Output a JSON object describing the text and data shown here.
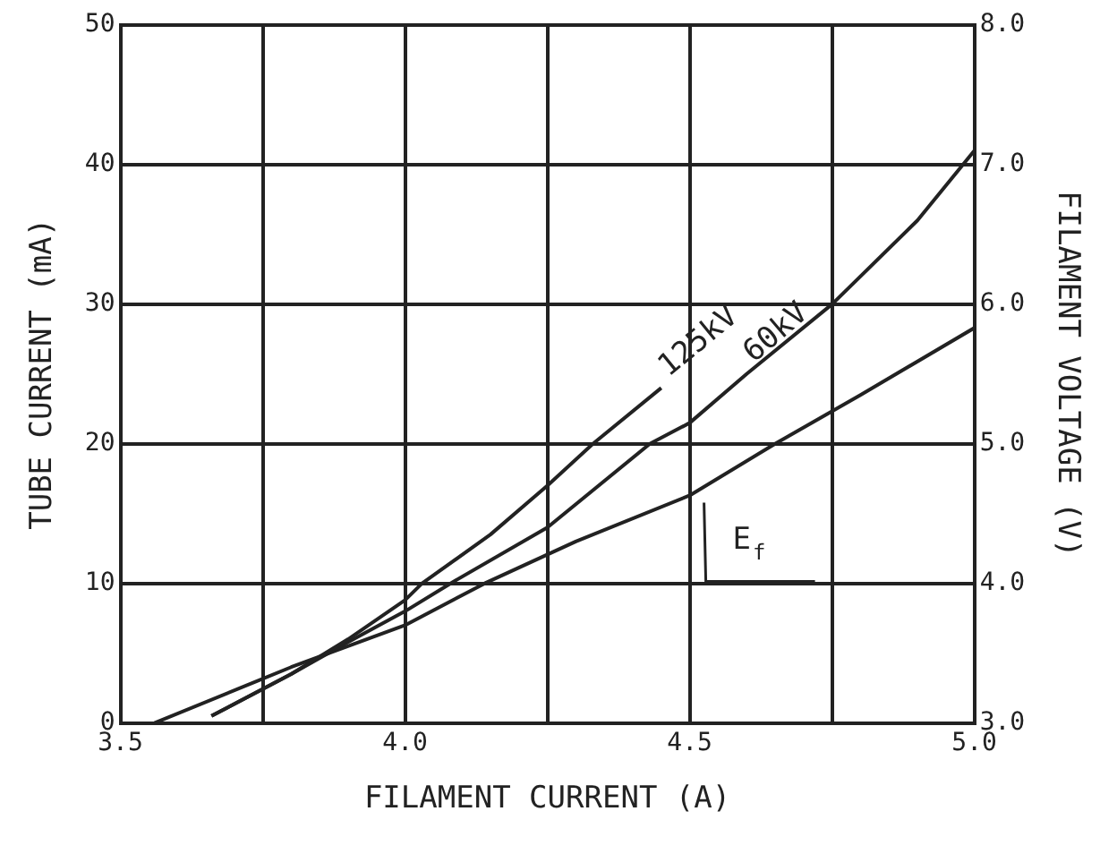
{
  "chart_data": {
    "type": "line",
    "xlabel": "FILAMENT CURRENT (A)",
    "ylabel": "TUBE CURRENT (mA)",
    "y2label": "FILAMENT VOLTAGE (V)",
    "xlim": [
      3.5,
      5.0
    ],
    "xticks": [
      3.5,
      {
        "value": 3.75,
        "label": null
      },
      {
        "value": 4.0,
        "label": "4.0"
      },
      {
        "value": 4.25,
        "label": null
      },
      4.5,
      {
        "value": 4.75,
        "label": null
      },
      {
        "value": 5.0,
        "label": "5.0"
      }
    ],
    "ylim": [
      0,
      50
    ],
    "yticks": [
      0,
      10,
      20,
      30,
      40,
      50
    ],
    "y2lim": [
      3.0,
      8.0
    ],
    "y2ticks": [
      {
        "value": 3,
        "label": "3.0"
      },
      {
        "value": 4,
        "label": "4.0"
      },
      {
        "value": 5,
        "label": "5.0"
      },
      {
        "value": 6,
        "label": "6.0"
      },
      {
        "value": 7,
        "label": "7.0"
      },
      {
        "value": 8,
        "label": "8.0"
      }
    ],
    "grid": true,
    "legend": false,
    "marker": "none",
    "line_style": "solid",
    "series": [
      {
        "name": "125kV",
        "color": "#222222",
        "x": [
          3.66,
          3.8,
          3.9,
          4.0,
          4.03,
          4.15,
          4.25,
          4.33,
          4.45
        ],
        "values": [
          0.5,
          3.5,
          6,
          8.8,
          10,
          13.5,
          17,
          20,
          24
        ]
      },
      {
        "name": "60kV",
        "color": "#222222",
        "x": [
          3.66,
          3.8,
          3.9,
          4.0,
          4.08,
          4.25,
          4.43,
          4.5,
          4.6,
          4.75,
          4.9,
          5.0
        ],
        "values": [
          0.5,
          3.5,
          5.8,
          8,
          10,
          14,
          20,
          21.5,
          25,
          30,
          36,
          41
        ]
      },
      {
        "name": "E$_{f}$",
        "color": "#222222",
        "axis": "y2",
        "x": [
          3.56,
          3.8,
          4.0,
          4.14,
          4.3,
          4.5,
          4.65,
          4.8,
          5.0
        ],
        "values": [
          3.0,
          3.4,
          3.7,
          4.0,
          4.3,
          4.63,
          5.0,
          5.35,
          5.83
        ]
      }
    ]
  }
}
